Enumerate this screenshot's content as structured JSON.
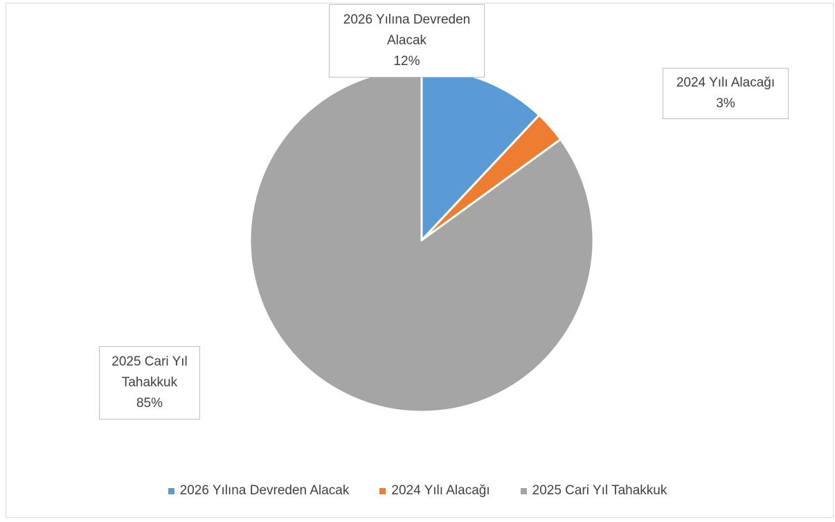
{
  "chart_data": {
    "type": "pie",
    "title": "",
    "start_angle_deg": 0,
    "direction": "clockwise",
    "slices": [
      {
        "label": "2026 Yılına Devreden Alacak",
        "label_lines": [
          "2026 Yılına Devreden",
          "Alacak"
        ],
        "value": 12,
        "value_text": "12%",
        "color": "#5b9bd5"
      },
      {
        "label": "2024 Yılı Alacağı",
        "label_lines": [
          "2024 Yılı Alacağı"
        ],
        "value": 3,
        "value_text": "3%",
        "color": "#ed7d31"
      },
      {
        "label": "2025 Cari Yıl Tahakkuk",
        "label_lines": [
          "2025 Cari Yıl",
          "Tahakkuk"
        ],
        "value": 85,
        "value_text": "85%",
        "color": "#a5a5a5"
      }
    ],
    "legend": {
      "position": "bottom",
      "entries": [
        "2026 Yılına Devreden Alacak",
        "2024 Yılı Alacağı",
        "2025 Cari Yıl Tahakkuk"
      ]
    }
  }
}
